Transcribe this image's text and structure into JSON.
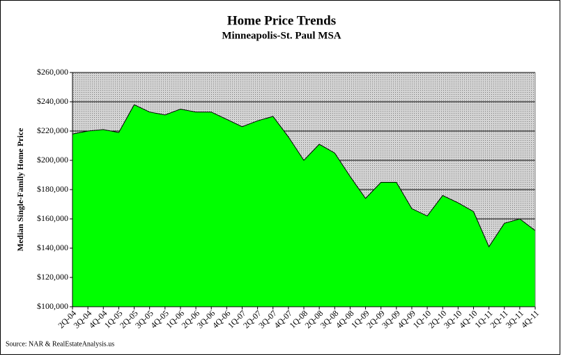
{
  "chart_data": {
    "type": "area",
    "title": "Home Price Trends",
    "subtitle": "Minneapolis-St. Paul MSA",
    "y_label": "Median Single-Family Home Price",
    "source": "Source: NAR & RealEstateAnalysis.us",
    "categories": [
      "2Q-04",
      "3Q-04",
      "4Q-04",
      "1Q-05",
      "2Q-05",
      "3Q-05",
      "4Q-05",
      "1Q-06",
      "2Q-06",
      "3Q-06",
      "4Q-06",
      "1Q-07",
      "2Q-07",
      "3Q-07",
      "4Q-07",
      "1Q-08",
      "2Q-08",
      "3Q-08",
      "4Q-08",
      "1Q-09",
      "2Q-09",
      "3Q-09",
      "4Q-09",
      "1Q-10",
      "2Q-10",
      "3Q-10",
      "4Q-10",
      "1Q-11",
      "2Q-11",
      "3Q-11",
      "4Q-11"
    ],
    "values": [
      218000,
      220000,
      221000,
      219000,
      238000,
      233000,
      231000,
      235000,
      233000,
      233000,
      228000,
      223000,
      227000,
      230000,
      216000,
      200000,
      211000,
      205000,
      189000,
      174000,
      185000,
      185000,
      167000,
      162000,
      176000,
      171000,
      165000,
      141000,
      157000,
      160000,
      152000
    ],
    "color": "#00ff00",
    "ylim": [
      100000,
      260000
    ],
    "yticks": [
      {
        "value": 100000,
        "label": "$100,000"
      },
      {
        "value": 120000,
        "label": "$120,000"
      },
      {
        "value": 140000,
        "label": "$140,000"
      },
      {
        "value": 160000,
        "label": "$160,000"
      },
      {
        "value": 180000,
        "label": "$180,000"
      },
      {
        "value": 200000,
        "label": "$200,000"
      },
      {
        "value": 220000,
        "label": "$220,000"
      },
      {
        "value": 240000,
        "label": "$240,000"
      },
      {
        "value": 260000,
        "label": "$260,000"
      }
    ],
    "grid": true
  }
}
